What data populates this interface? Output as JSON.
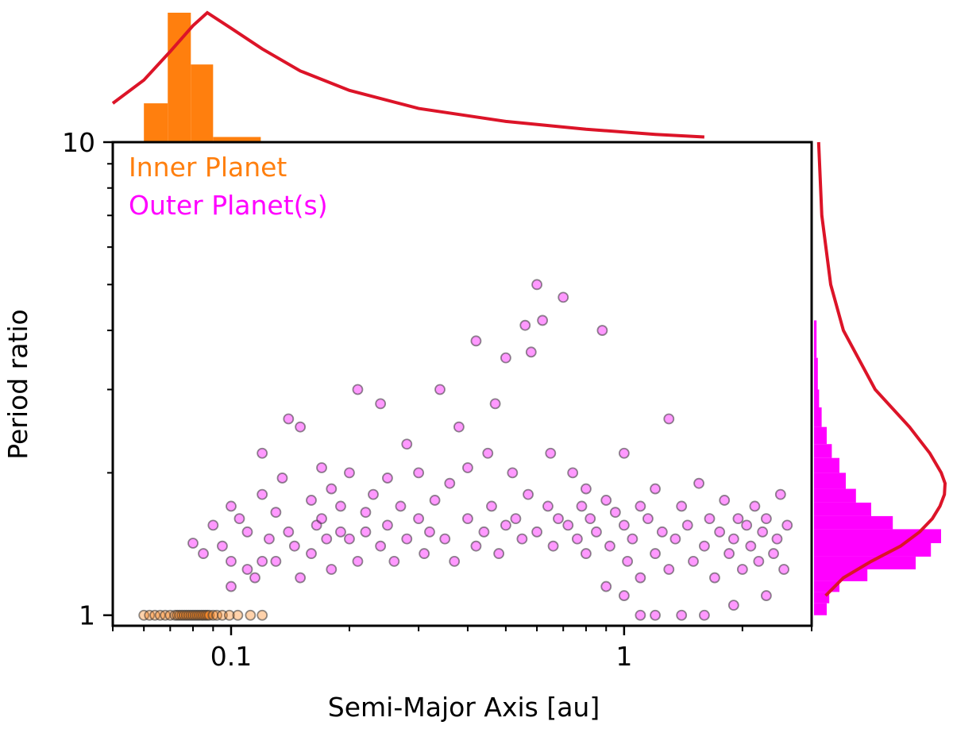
{
  "chart_data": {
    "type": "scatter",
    "title": "",
    "xlabel": "Semi-Major Axis [au]",
    "ylabel": "Period ratio",
    "xscale": "log",
    "yscale": "log",
    "xlim": [
      0.05,
      3.0
    ],
    "ylim": [
      0.95,
      10
    ],
    "xticks": [
      {
        "value": 0.1,
        "label": "0.1"
      },
      {
        "value": 1,
        "label": "1"
      }
    ],
    "yticks": [
      {
        "value": 1,
        "label": "1"
      },
      {
        "value": 10,
        "label": "10"
      }
    ],
    "grid": false,
    "legend_position": "top-left",
    "series": [
      {
        "name": "Inner Planet",
        "color": "#ff7f0e",
        "points": [
          [
            0.06,
            1
          ],
          [
            0.062,
            1
          ],
          [
            0.064,
            1
          ],
          [
            0.066,
            1
          ],
          [
            0.068,
            1
          ],
          [
            0.07,
            1
          ],
          [
            0.072,
            1
          ],
          [
            0.073,
            1
          ],
          [
            0.074,
            1
          ],
          [
            0.075,
            1
          ],
          [
            0.076,
            1
          ],
          [
            0.077,
            1
          ],
          [
            0.078,
            1
          ],
          [
            0.079,
            1
          ],
          [
            0.08,
            1
          ],
          [
            0.081,
            1
          ],
          [
            0.082,
            1
          ],
          [
            0.083,
            1
          ],
          [
            0.084,
            1
          ],
          [
            0.085,
            1
          ],
          [
            0.086,
            1
          ],
          [
            0.087,
            1
          ],
          [
            0.088,
            1
          ],
          [
            0.09,
            1
          ],
          [
            0.092,
            1
          ],
          [
            0.095,
            1
          ],
          [
            0.099,
            1
          ],
          [
            0.104,
            1
          ],
          [
            0.112,
            1
          ],
          [
            0.12,
            1
          ]
        ]
      },
      {
        "name": "Outer Planet(s)",
        "color": "#ff00ff",
        "points": [
          [
            0.08,
            1.42
          ],
          [
            0.085,
            1.35
          ],
          [
            0.09,
            1.55
          ],
          [
            0.095,
            1.4
          ],
          [
            0.1,
            1.7
          ],
          [
            0.1,
            1.3
          ],
          [
            0.105,
            1.6
          ],
          [
            0.11,
            1.5
          ],
          [
            0.11,
            1.25
          ],
          [
            0.115,
            1.2
          ],
          [
            0.12,
            2.2
          ],
          [
            0.12,
            1.8
          ],
          [
            0.125,
            1.45
          ],
          [
            0.13,
            1.3
          ],
          [
            0.13,
            1.65
          ],
          [
            0.135,
            1.95
          ],
          [
            0.14,
            1.5
          ],
          [
            0.14,
            2.6
          ],
          [
            0.145,
            1.4
          ],
          [
            0.15,
            1.2
          ],
          [
            0.15,
            2.5
          ],
          [
            0.16,
            1.75
          ],
          [
            0.16,
            1.35
          ],
          [
            0.165,
            1.55
          ],
          [
            0.17,
            2.05
          ],
          [
            0.17,
            1.6
          ],
          [
            0.175,
            1.45
          ],
          [
            0.18,
            1.85
          ],
          [
            0.18,
            1.25
          ],
          [
            0.19,
            1.5
          ],
          [
            0.19,
            1.7
          ],
          [
            0.2,
            1.45
          ],
          [
            0.2,
            2.0
          ],
          [
            0.21,
            3.0
          ],
          [
            0.21,
            1.3
          ],
          [
            0.22,
            1.65
          ],
          [
            0.22,
            1.5
          ],
          [
            0.23,
            1.8
          ],
          [
            0.24,
            2.8
          ],
          [
            0.24,
            1.4
          ],
          [
            0.25,
            1.55
          ],
          [
            0.25,
            1.95
          ],
          [
            0.26,
            1.3
          ],
          [
            0.27,
            1.7
          ],
          [
            0.28,
            1.45
          ],
          [
            0.28,
            2.3
          ],
          [
            0.3,
            1.6
          ],
          [
            0.3,
            2.0
          ],
          [
            0.31,
            1.35
          ],
          [
            0.32,
            1.5
          ],
          [
            0.33,
            1.75
          ],
          [
            0.34,
            3.0
          ],
          [
            0.35,
            1.45
          ],
          [
            0.36,
            1.9
          ],
          [
            0.37,
            1.3
          ],
          [
            0.38,
            2.5
          ],
          [
            0.4,
            1.6
          ],
          [
            0.4,
            2.05
          ],
          [
            0.42,
            1.4
          ],
          [
            0.42,
            3.8
          ],
          [
            0.44,
            1.5
          ],
          [
            0.45,
            2.2
          ],
          [
            0.46,
            1.7
          ],
          [
            0.47,
            2.8
          ],
          [
            0.48,
            1.35
          ],
          [
            0.5,
            1.55
          ],
          [
            0.5,
            3.5
          ],
          [
            0.52,
            2.0
          ],
          [
            0.53,
            1.6
          ],
          [
            0.55,
            1.45
          ],
          [
            0.56,
            4.1
          ],
          [
            0.57,
            1.8
          ],
          [
            0.58,
            3.6
          ],
          [
            0.6,
            5.0
          ],
          [
            0.6,
            1.5
          ],
          [
            0.62,
            4.2
          ],
          [
            0.64,
            1.7
          ],
          [
            0.65,
            2.2
          ],
          [
            0.66,
            1.4
          ],
          [
            0.68,
            1.6
          ],
          [
            0.7,
            4.7
          ],
          [
            0.72,
            1.55
          ],
          [
            0.74,
            2.0
          ],
          [
            0.76,
            1.45
          ],
          [
            0.78,
            1.7
          ],
          [
            0.8,
            1.85
          ],
          [
            0.8,
            1.35
          ],
          [
            0.82,
            1.6
          ],
          [
            0.85,
            1.5
          ],
          [
            0.88,
            4.0
          ],
          [
            0.9,
            1.75
          ],
          [
            0.92,
            1.4
          ],
          [
            0.95,
            1.65
          ],
          [
            1.0,
            1.55
          ],
          [
            1.0,
            2.2
          ],
          [
            1.02,
            1.3
          ],
          [
            1.05,
            1.45
          ],
          [
            1.1,
            1.7
          ],
          [
            1.1,
            1.2
          ],
          [
            1.15,
            1.6
          ],
          [
            1.2,
            1.35
          ],
          [
            1.2,
            1.85
          ],
          [
            1.25,
            1.5
          ],
          [
            1.3,
            2.6
          ],
          [
            1.3,
            1.25
          ],
          [
            1.35,
            1.45
          ],
          [
            1.4,
            1.7
          ],
          [
            1.45,
            1.55
          ],
          [
            1.5,
            1.3
          ],
          [
            1.55,
            1.9
          ],
          [
            1.6,
            1.4
          ],
          [
            1.65,
            1.6
          ],
          [
            1.7,
            1.2
          ],
          [
            1.75,
            1.5
          ],
          [
            1.8,
            1.75
          ],
          [
            1.85,
            1.35
          ],
          [
            1.9,
            1.45
          ],
          [
            1.95,
            1.6
          ],
          [
            2.0,
            1.25
          ],
          [
            2.05,
            1.55
          ],
          [
            2.1,
            1.4
          ],
          [
            2.15,
            1.7
          ],
          [
            2.2,
            1.3
          ],
          [
            2.25,
            1.5
          ],
          [
            2.3,
            1.6
          ],
          [
            2.4,
            1.35
          ],
          [
            2.45,
            1.45
          ],
          [
            2.5,
            1.8
          ],
          [
            2.55,
            1.25
          ],
          [
            2.6,
            1.55
          ],
          [
            1.1,
            1.0
          ],
          [
            1.2,
            1.0
          ],
          [
            1.4,
            1.0
          ],
          [
            1.6,
            1.0
          ],
          [
            1.9,
            1.05
          ],
          [
            2.3,
            1.1
          ],
          [
            0.9,
            1.15
          ],
          [
            1.0,
            1.1
          ],
          [
            0.1,
            1.15
          ],
          [
            0.12,
            1.3
          ]
        ]
      }
    ],
    "marginal_x": {
      "histogram_series": "Inner Planet",
      "bins": [
        {
          "x0": 0.06,
          "x1": 0.069,
          "count": 3
        },
        {
          "x0": 0.069,
          "x1": 0.079,
          "count": 10
        },
        {
          "x0": 0.079,
          "x1": 0.09,
          "count": 6
        },
        {
          "x0": 0.09,
          "x1": 0.119,
          "count": 0.4
        }
      ],
      "curve_color": "#dc1428",
      "curve": [
        [
          0.05,
          0.3
        ],
        [
          0.06,
          0.48
        ],
        [
          0.07,
          0.7
        ],
        [
          0.08,
          0.9
        ],
        [
          0.087,
          1.0
        ],
        [
          0.1,
          0.88
        ],
        [
          0.12,
          0.72
        ],
        [
          0.15,
          0.55
        ],
        [
          0.2,
          0.4
        ],
        [
          0.3,
          0.26
        ],
        [
          0.5,
          0.16
        ],
        [
          0.8,
          0.1
        ],
        [
          1.2,
          0.06
        ],
        [
          1.6,
          0.04
        ]
      ]
    },
    "marginal_y": {
      "histogram_series": "Outer Planet(s)",
      "bins": [
        [
          1.0,
          1.06,
          0.1
        ],
        [
          1.06,
          1.12,
          0.12
        ],
        [
          1.12,
          1.18,
          0.2
        ],
        [
          1.18,
          1.25,
          0.42
        ],
        [
          1.25,
          1.33,
          0.8
        ],
        [
          1.33,
          1.42,
          0.92
        ],
        [
          1.42,
          1.52,
          1.0
        ],
        [
          1.52,
          1.62,
          0.62
        ],
        [
          1.62,
          1.73,
          0.45
        ],
        [
          1.73,
          1.85,
          0.33
        ],
        [
          1.85,
          2.0,
          0.25
        ],
        [
          2.0,
          2.15,
          0.2
        ],
        [
          2.15,
          2.3,
          0.14
        ],
        [
          2.3,
          2.5,
          0.1
        ],
        [
          2.5,
          2.75,
          0.06
        ],
        [
          2.75,
          3.0,
          0.04
        ],
        [
          3.0,
          3.5,
          0.03
        ],
        [
          3.5,
          4.2,
          0.02
        ]
      ],
      "curve_color": "#dc1428",
      "curve": [
        [
          1.1,
          0.06
        ],
        [
          1.2,
          0.2
        ],
        [
          1.3,
          0.42
        ],
        [
          1.4,
          0.65
        ],
        [
          1.5,
          0.8
        ],
        [
          1.6,
          0.9
        ],
        [
          1.7,
          0.96
        ],
        [
          1.8,
          0.995
        ],
        [
          1.9,
          1.0
        ],
        [
          2.0,
          0.97
        ],
        [
          2.2,
          0.88
        ],
        [
          2.5,
          0.72
        ],
        [
          3.0,
          0.45
        ],
        [
          4.0,
          0.2
        ],
        [
          5.0,
          0.1
        ],
        [
          7.0,
          0.03
        ],
        [
          10.0,
          0.005
        ]
      ]
    }
  }
}
